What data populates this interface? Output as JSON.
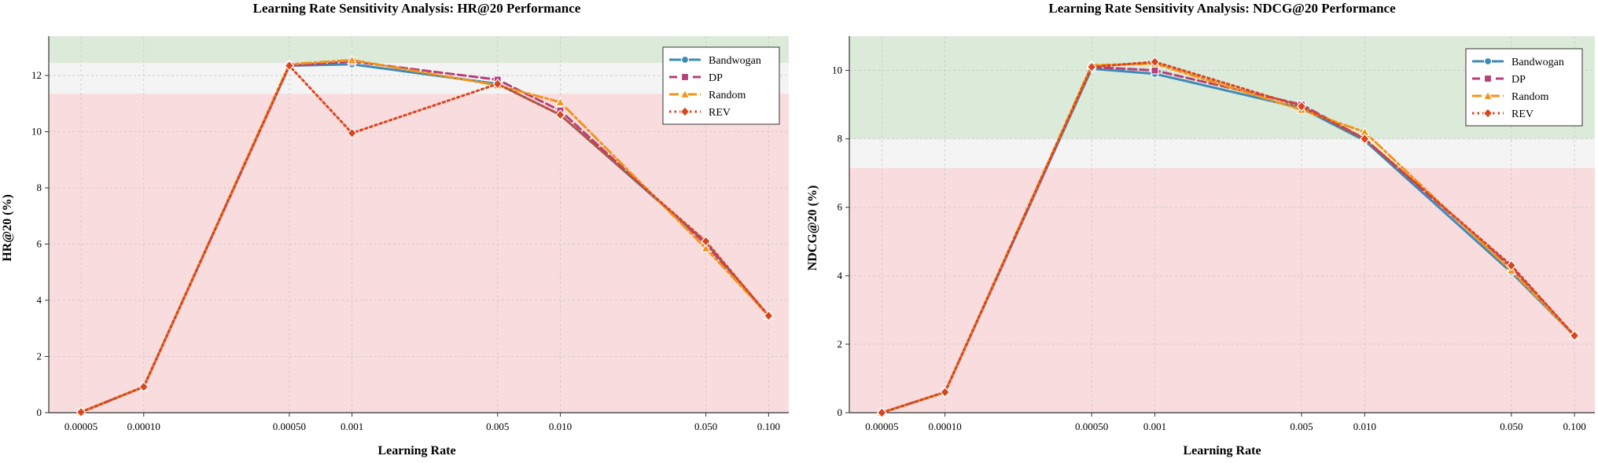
{
  "chart_data": [
    {
      "type": "line",
      "title": "Learning Rate Sensitivity Analysis: HR@20 Performance",
      "xlabel": "Learning Rate",
      "ylabel": "HR@20 (%)",
      "x_scale": "log",
      "x": [
        5e-05,
        0.0001,
        0.0005,
        0.001,
        0.005,
        0.01,
        0.05,
        0.1
      ],
      "x_tick_labels": [
        "0.00005",
        "0.00010",
        "0.00050",
        "0.001",
        "0.005",
        "0.010",
        "0.050",
        "0.100"
      ],
      "ylim": [
        0,
        13.4
      ],
      "y_ticks": [
        0,
        2,
        4,
        6,
        8,
        10,
        12
      ],
      "grid": true,
      "legend_position": "top-right",
      "bands": [
        {
          "from": 12.45,
          "to": 13.4,
          "color": "#dcead9"
        },
        {
          "from": 11.35,
          "to": 12.45,
          "color": "#f4f4f4"
        },
        {
          "from": 0,
          "to": 11.35,
          "color": "#f9dcdd"
        }
      ],
      "series": [
        {
          "name": "Bandwogan",
          "color": "#3d8bb5",
          "dash": "solid",
          "marker": "circle",
          "values": [
            0.02,
            0.92,
            12.35,
            12.4,
            11.7,
            10.6,
            6.05,
            3.45
          ]
        },
        {
          "name": "DP",
          "color": "#b5407a",
          "dash": "dashed",
          "marker": "square",
          "values": [
            0.02,
            0.92,
            12.35,
            12.5,
            11.85,
            10.75,
            6.0,
            3.45
          ]
        },
        {
          "name": "Random",
          "color": "#f29418",
          "dash": "dashdot",
          "marker": "triangle",
          "values": [
            0.02,
            0.92,
            12.4,
            12.55,
            11.65,
            11.05,
            5.85,
            3.45
          ]
        },
        {
          "name": "REV",
          "color": "#d9451f",
          "dash": "dotted",
          "marker": "diamond",
          "values": [
            0.02,
            0.92,
            12.35,
            9.95,
            11.7,
            10.6,
            6.1,
            3.45
          ]
        }
      ]
    },
    {
      "type": "line",
      "title": "Learning Rate Sensitivity Analysis: NDCG@20 Performance",
      "xlabel": "Learning Rate",
      "ylabel": "NDCG@20 (%)",
      "x_scale": "log",
      "x": [
        5e-05,
        0.0001,
        0.0005,
        0.001,
        0.005,
        0.01,
        0.05,
        0.1
      ],
      "x_tick_labels": [
        "0.00005",
        "0.00010",
        "0.00050",
        "0.001",
        "0.005",
        "0.010",
        "0.050",
        "0.100"
      ],
      "ylim": [
        0,
        11
      ],
      "y_ticks": [
        0,
        2,
        4,
        6,
        8,
        10
      ],
      "grid": true,
      "legend_position": "top-right",
      "bands": [
        {
          "from": 8.0,
          "to": 11,
          "color": "#dcead9"
        },
        {
          "from": 7.15,
          "to": 8.0,
          "color": "#f4f4f4"
        },
        {
          "from": 0,
          "to": 7.15,
          "color": "#f9dcdd"
        }
      ],
      "series": [
        {
          "name": "Bandwogan",
          "color": "#3d8bb5",
          "dash": "solid",
          "marker": "circle",
          "values": [
            0.0,
            0.6,
            10.05,
            9.9,
            8.9,
            7.95,
            4.1,
            2.25
          ]
        },
        {
          "name": "DP",
          "color": "#b5407a",
          "dash": "dashed",
          "marker": "square",
          "values": [
            0.0,
            0.6,
            10.1,
            10.0,
            9.0,
            8.0,
            4.25,
            2.25
          ]
        },
        {
          "name": "Random",
          "color": "#f29418",
          "dash": "dashdot",
          "marker": "triangle",
          "values": [
            0.0,
            0.6,
            10.15,
            10.2,
            8.85,
            8.2,
            4.15,
            2.25
          ]
        },
        {
          "name": "REV",
          "color": "#d9451f",
          "dash": "dotted",
          "marker": "diamond",
          "values": [
            0.0,
            0.6,
            10.1,
            10.25,
            8.95,
            8.0,
            4.3,
            2.25
          ]
        }
      ]
    }
  ]
}
